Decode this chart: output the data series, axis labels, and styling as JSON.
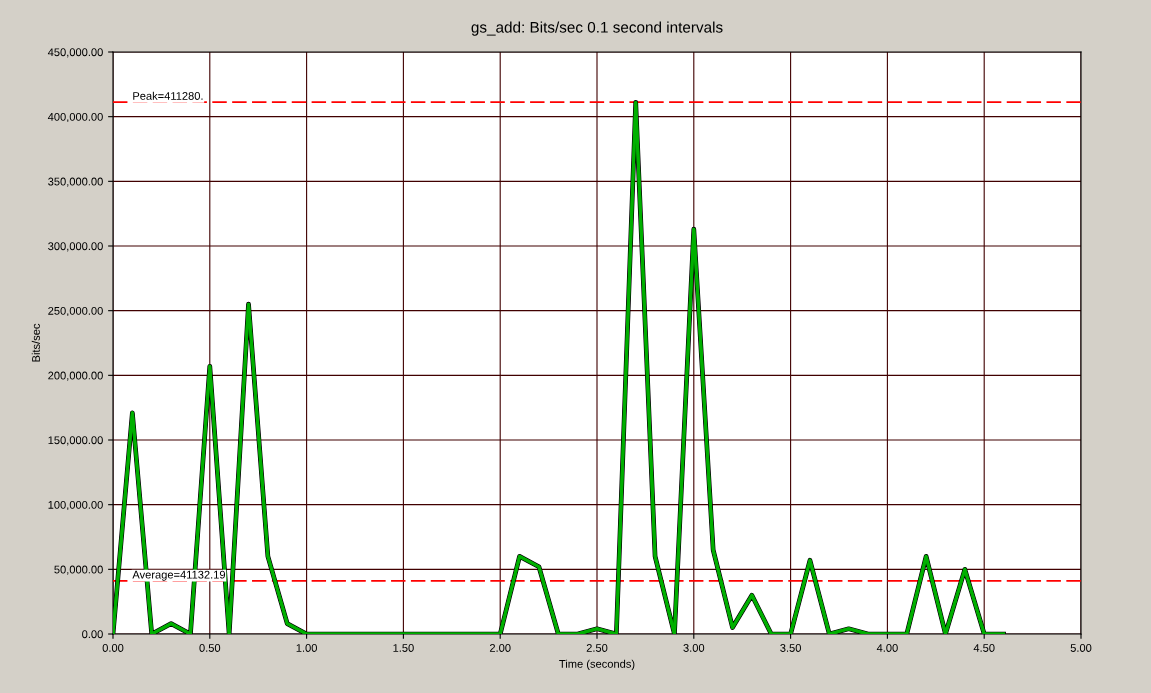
{
  "chart_data": {
    "type": "line",
    "title": "gs_add: Bits/sec 0.1 second intervals",
    "xlabel": "Time (seconds)",
    "ylabel": "Bits/sec",
    "x": [
      0,
      0.1,
      0.2,
      0.3,
      0.4,
      0.5,
      0.6,
      0.7,
      0.8,
      0.9,
      1.0,
      1.1,
      1.2,
      1.3,
      1.4,
      1.5,
      1.6,
      1.7,
      1.8,
      1.9,
      2.0,
      2.1,
      2.2,
      2.3,
      2.4,
      2.5,
      2.6,
      2.7,
      2.8,
      2.9,
      3.0,
      3.1,
      3.2,
      3.3,
      3.4,
      3.5,
      3.6,
      3.7,
      3.8,
      3.9,
      4.0,
      4.1,
      4.2,
      4.3,
      4.4,
      4.5,
      4.6
    ],
    "series": [
      {
        "color": "#00b000",
        "values": [
          0,
          171000,
          0,
          8000,
          0,
          207000,
          0,
          255000,
          60000,
          8000,
          0,
          0,
          0,
          0,
          0,
          0,
          0,
          0,
          0,
          0,
          0,
          60000,
          52000,
          0,
          0,
          4000,
          0,
          411000,
          60000,
          0,
          313000,
          65000,
          5000,
          30000,
          0,
          0,
          57000,
          0,
          4000,
          0,
          0,
          0,
          60000,
          0,
          50000,
          0,
          0
        ]
      }
    ],
    "xlim": [
      0,
      5
    ],
    "ylim": [
      0,
      450000
    ],
    "xticks": [
      {
        "value": 0,
        "label": "0.00"
      },
      {
        "value": 0.5,
        "label": "0.50"
      },
      {
        "value": 1,
        "label": "1.00"
      },
      {
        "value": 1.5,
        "label": "1.50"
      },
      {
        "value": 2,
        "label": "2.00"
      },
      {
        "value": 2.5,
        "label": "2.50"
      },
      {
        "value": 3,
        "label": "3.00"
      },
      {
        "value": 3.5,
        "label": "3.50"
      },
      {
        "value": 4,
        "label": "4.00"
      },
      {
        "value": 4.5,
        "label": "4.50"
      },
      {
        "value": 5,
        "label": "5.00"
      }
    ],
    "yticks": [
      {
        "value": 0,
        "label": "0.00"
      },
      {
        "value": 50000,
        "label": "50,000.00"
      },
      {
        "value": 100000,
        "label": "100,000.00"
      },
      {
        "value": 150000,
        "label": "150,000.00"
      },
      {
        "value": 200000,
        "label": "200,000.00"
      },
      {
        "value": 250000,
        "label": "250,000.00"
      },
      {
        "value": 300000,
        "label": "300,000.00"
      },
      {
        "value": 350000,
        "label": "350,000.00"
      },
      {
        "value": 400000,
        "label": "400,000.00"
      },
      {
        "value": 450000,
        "label": "450,000.00"
      }
    ],
    "ref_lines": [
      {
        "axis": "y",
        "value": 411280,
        "label": "Peak=411280.",
        "color": "#ff0000",
        "line_style": "dashed"
      },
      {
        "axis": "y",
        "value": 41132.19,
        "label": "Average=41132.19",
        "color": "#ff0000",
        "line_style": "dashed"
      }
    ],
    "grid": true,
    "marker": "none",
    "line_style": "solid"
  }
}
